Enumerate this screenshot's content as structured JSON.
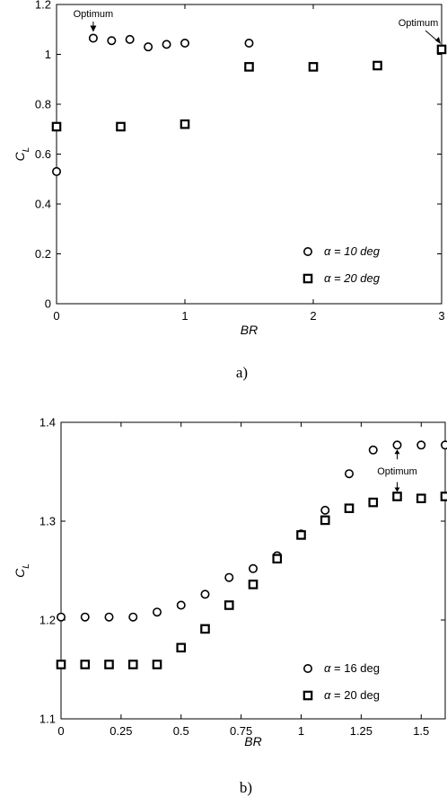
{
  "chart_data": [
    {
      "type": "scatter",
      "caption": "a)",
      "xlabel": "BR",
      "ylabel_main": "C",
      "ylabel_sub": "L",
      "xlim": [
        0,
        3
      ],
      "ylim": [
        0,
        1.2
      ],
      "x_ticks": [
        0,
        1,
        2,
        3
      ],
      "x_tick_labels": [
        "0",
        "1",
        "2",
        "3"
      ],
      "y_ticks": [
        0,
        0.2,
        0.4,
        0.6,
        0.8,
        1,
        1.2
      ],
      "y_tick_labels": [
        "0",
        "0.2",
        "0.4",
        "0.6",
        "0.8",
        "1",
        "1.2"
      ],
      "grid": false,
      "legend_position": "bottom-right",
      "series": [
        {
          "name": "α = 10 deg",
          "legend_symbol": "α",
          "legend_text": " = 10 deg",
          "legend_italic": true,
          "marker": "circle",
          "x": [
            0,
            0.286,
            0.429,
            0.571,
            0.714,
            0.857,
            1.0,
            1.5
          ],
          "y": [
            0.53,
            1.065,
            1.055,
            1.06,
            1.03,
            1.04,
            1.045,
            1.045
          ]
        },
        {
          "name": "α = 20 deg",
          "legend_symbol": "α",
          "legend_text": " = 20 deg",
          "legend_italic": true,
          "marker": "square",
          "x": [
            0,
            0.5,
            1.0,
            1.5,
            2.0,
            2.5,
            3.0
          ],
          "y": [
            0.71,
            0.71,
            0.72,
            0.95,
            0.95,
            0.955,
            1.02
          ]
        }
      ],
      "annotations": [
        {
          "text": "Optimum",
          "x": 0.286,
          "y": 1.065,
          "placement": "above-left"
        },
        {
          "text": "Optimum",
          "x": 3.0,
          "y": 1.02,
          "placement": "above-left"
        }
      ]
    },
    {
      "type": "scatter",
      "caption": "b)",
      "xlabel": "BR",
      "ylabel_main": "C",
      "ylabel_sub": "L",
      "xlim": [
        0,
        1.6
      ],
      "ylim": [
        1.1,
        1.4
      ],
      "x_ticks": [
        0,
        0.25,
        0.5,
        0.75,
        1,
        1.25,
        1.5
      ],
      "x_tick_labels": [
        "0",
        "0.25",
        "0.5",
        "0.75",
        "1",
        "1.25",
        "1.5"
      ],
      "y_ticks": [
        1.1,
        1.2,
        1.3,
        1.4
      ],
      "y_tick_labels": [
        "1.1",
        "1.2",
        "1.3",
        "1.4"
      ],
      "grid": false,
      "legend_position": "bottom-right",
      "series": [
        {
          "name": "α = 16 deg",
          "legend_symbol": "α",
          "legend_text": " = 16 deg",
          "legend_italic": false,
          "marker": "circle",
          "x": [
            0,
            0.1,
            0.2,
            0.3,
            0.4,
            0.5,
            0.6,
            0.7,
            0.8,
            0.9,
            1.0,
            1.1,
            1.2,
            1.3,
            1.4,
            1.5,
            1.6
          ],
          "y": [
            1.203,
            1.203,
            1.203,
            1.203,
            1.208,
            1.215,
            1.226,
            1.243,
            1.252,
            1.265,
            1.287,
            1.311,
            1.348,
            1.372,
            1.377,
            1.377,
            1.377
          ]
        },
        {
          "name": "α = 20 deg",
          "legend_symbol": "α",
          "legend_text": " = 20 deg",
          "legend_italic": false,
          "marker": "square",
          "x": [
            0,
            0.1,
            0.2,
            0.3,
            0.4,
            0.5,
            0.6,
            0.7,
            0.8,
            0.9,
            1.0,
            1.1,
            1.2,
            1.3,
            1.4,
            1.5,
            1.6
          ],
          "y": [
            1.155,
            1.155,
            1.155,
            1.155,
            1.155,
            1.172,
            1.191,
            1.215,
            1.236,
            1.262,
            1.286,
            1.301,
            1.313,
            1.319,
            1.325,
            1.323,
            1.325
          ]
        }
      ],
      "annotations": [
        {
          "text": "Optimum",
          "x": 1.4,
          "y_from": 1.325,
          "y_to": 1.377,
          "placement": "between"
        }
      ]
    }
  ]
}
